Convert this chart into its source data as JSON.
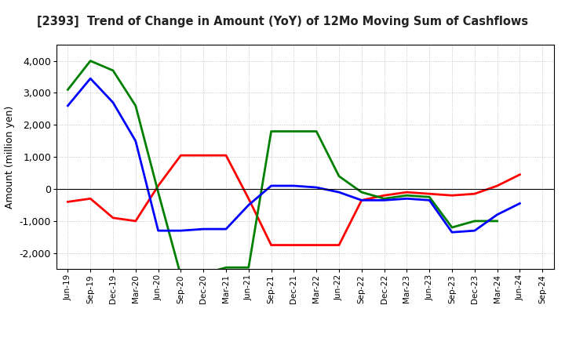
{
  "title": "[2393]  Trend of Change in Amount (YoY) of 12Mo Moving Sum of Cashflows",
  "ylabel": "Amount (million yen)",
  "xlabels": [
    "Jun-19",
    "Sep-19",
    "Dec-19",
    "Mar-20",
    "Jun-20",
    "Sep-20",
    "Dec-20",
    "Mar-21",
    "Jun-21",
    "Sep-21",
    "Dec-21",
    "Mar-22",
    "Jun-22",
    "Sep-22",
    "Dec-22",
    "Mar-23",
    "Jun-23",
    "Sep-23",
    "Dec-23",
    "Mar-24",
    "Jun-24",
    "Sep-24"
  ],
  "operating": [
    -400,
    -300,
    -900,
    -1000,
    100,
    1050,
    1050,
    1050,
    -300,
    -1750,
    -1750,
    -1750,
    -1750,
    -350,
    -200,
    -100,
    -150,
    -200,
    -150,
    100,
    450,
    null
  ],
  "investing": [
    3100,
    4000,
    3700,
    2600,
    -100,
    -2700,
    -2650,
    -2450,
    -2450,
    1800,
    1800,
    1800,
    400,
    -100,
    -300,
    -200,
    -250,
    -1200,
    -1000,
    -1000,
    null,
    null
  ],
  "free": [
    2600,
    3450,
    2700,
    1500,
    -1300,
    -1300,
    -1250,
    -1250,
    -500,
    100,
    100,
    50,
    -100,
    -350,
    -350,
    -300,
    -350,
    -1350,
    -1300,
    -800,
    -450,
    null
  ],
  "ylim": [
    -2500,
    4500
  ],
  "yticks": [
    -2000,
    -1000,
    0,
    1000,
    2000,
    3000,
    4000
  ],
  "operating_color": "#ff0000",
  "investing_color": "#008000",
  "free_color": "#0000ff",
  "line_width": 2.0,
  "background_color": "#ffffff",
  "grid_color": "#999999"
}
